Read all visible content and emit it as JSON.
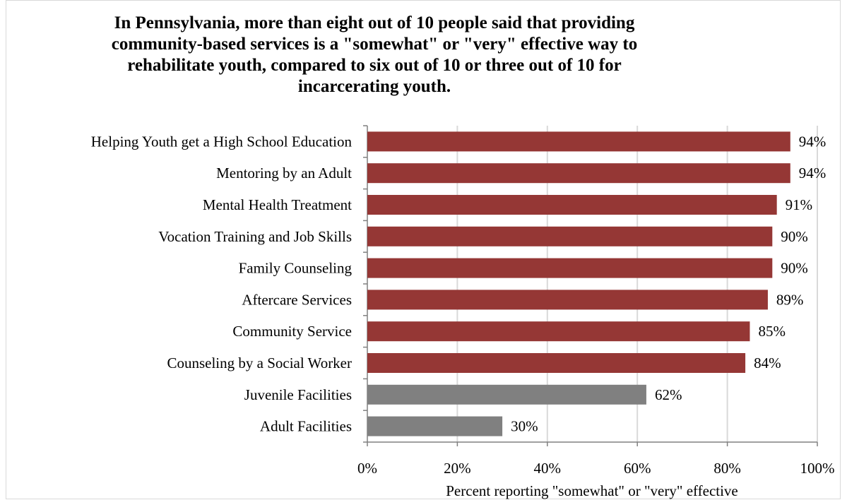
{
  "chart_data": {
    "type": "bar",
    "orientation": "horizontal",
    "title": "In Pennsylvania, more than eight out of 10 people said that providing community-based services is a \"somewhat\" or \"very\" effective way to rehabilitate youth, compared to six out of 10 or three out of 10 for incarcerating youth.",
    "categories": [
      "Helping Youth get a High School Education",
      "Mentoring by an Adult",
      "Mental Health Treatment",
      "Vocation Training and Job Skills",
      "Family Counseling",
      "Aftercare Services",
      "Community Service",
      "Counseling by a Social Worker",
      "Juvenile Facilities",
      "Adult Facilities"
    ],
    "values": [
      94,
      94,
      91,
      90,
      90,
      89,
      85,
      84,
      62,
      30
    ],
    "data_labels": [
      "94%",
      "94%",
      "91%",
      "90%",
      "90%",
      "89%",
      "85%",
      "84%",
      "62%",
      "30%"
    ],
    "bar_colors": [
      "#953735",
      "#953735",
      "#953735",
      "#953735",
      "#953735",
      "#953735",
      "#953735",
      "#953735",
      "#808080",
      "#808080"
    ],
    "xlabel": "Percent reporting \"somewhat\" or \"very\" effective",
    "xlim": [
      0,
      100
    ],
    "x_ticks": [
      0,
      20,
      40,
      60,
      80,
      100
    ],
    "x_tick_labels": [
      "0%",
      "20%",
      "40%",
      "60%",
      "80%",
      "100%"
    ],
    "grid": true,
    "legend": "none"
  }
}
